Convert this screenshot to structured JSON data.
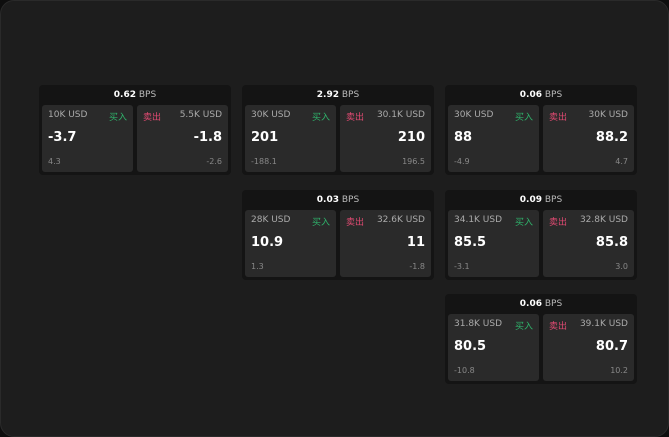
{
  "colors": {
    "buy": "#2fb36b",
    "sell": "#e04a72"
  },
  "buy_label": "买入",
  "sell_label": "卖出",
  "unit": "BPS",
  "cards": [
    {
      "spread": "0.62",
      "bid": {
        "size": "10K USD",
        "price": "-3.7",
        "change": "4.3"
      },
      "ask": {
        "size": "5.5K USD",
        "price": "-1.8",
        "change": "-2.6"
      }
    },
    {
      "spread": "2.92",
      "bid": {
        "size": "30K USD",
        "price": "201",
        "change": "-188.1"
      },
      "ask": {
        "size": "30.1K USD",
        "price": "210",
        "change": "196.5"
      }
    },
    {
      "spread": "0.06",
      "bid": {
        "size": "30K USD",
        "price": "88",
        "change": "-4.9"
      },
      "ask": {
        "size": "30K USD",
        "price": "88.2",
        "change": "4.7"
      }
    },
    {
      "spread": "0.03",
      "bid": {
        "size": "28K USD",
        "price": "10.9",
        "change": "1.3"
      },
      "ask": {
        "size": "32.6K USD",
        "price": "11",
        "change": "-1.8"
      }
    },
    {
      "spread": "0.09",
      "bid": {
        "size": "34.1K USD",
        "price": "85.5",
        "change": "-3.1"
      },
      "ask": {
        "size": "32.8K USD",
        "price": "85.8",
        "change": "3.0"
      }
    },
    {
      "spread": "0.06",
      "bid": {
        "size": "31.8K USD",
        "price": "80.5",
        "change": "-10.8"
      },
      "ask": {
        "size": "39.1K USD",
        "price": "80.7",
        "change": "10.2"
      }
    }
  ]
}
